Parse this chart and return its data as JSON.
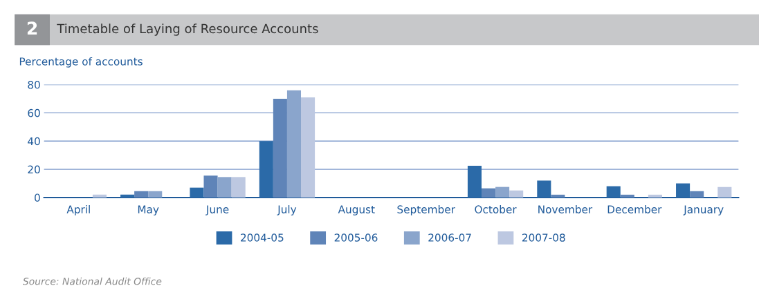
{
  "chart_data": {
    "type": "bar",
    "title": "Timetable of Laying of Resource Accounts",
    "ylabel": "Percentage of accounts",
    "categories": [
      "April",
      "May",
      "June",
      "July",
      "August",
      "September",
      "October",
      "November",
      "December",
      "January"
    ],
    "series": [
      {
        "name": "2004-05",
        "color": "#2b6aa8",
        "values": [
          null,
          2,
          7,
          40,
          null,
          null,
          22.5,
          12,
          8,
          10
        ]
      },
      {
        "name": "2005-06",
        "color": "#5f84b8",
        "values": [
          null,
          4.5,
          15.5,
          70,
          null,
          null,
          6.5,
          2,
          2,
          4.5
        ]
      },
      {
        "name": "2006-07",
        "color": "#8aa5cc",
        "values": [
          null,
          4.5,
          14.5,
          76,
          null,
          null,
          7.5,
          null,
          null,
          null
        ]
      },
      {
        "name": "2007-08",
        "color": "#bdc8e1",
        "values": [
          2,
          null,
          14.5,
          71,
          null,
          null,
          5,
          null,
          2,
          7.5
        ]
      }
    ],
    "ylim": [
      0,
      80
    ],
    "yticks": [
      0,
      20,
      40,
      60,
      80
    ],
    "grid": "y",
    "legend": "bottom",
    "annotations": [
      "2",
      "Source: National Audit Office"
    ]
  }
}
